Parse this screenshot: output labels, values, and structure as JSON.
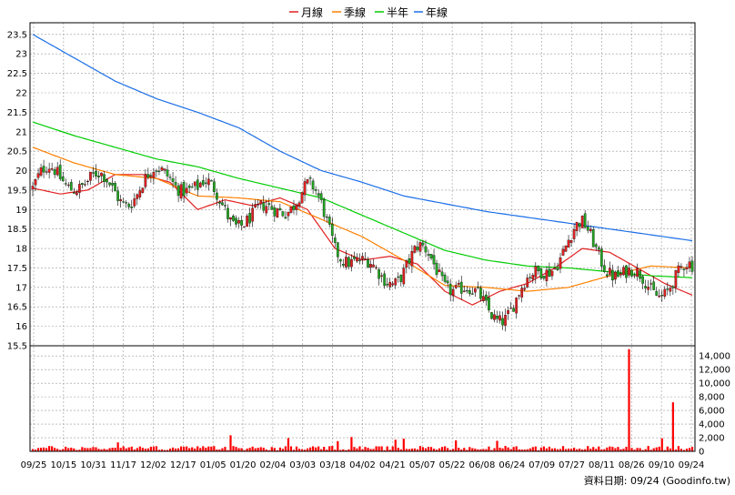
{
  "legend": {
    "items": [
      {
        "label": "月線",
        "color": "#e02020"
      },
      {
        "label": "季線",
        "color": "#ff8000"
      },
      {
        "label": "半年",
        "color": "#00cc00"
      },
      {
        "label": "年線",
        "color": "#1a6ee8"
      }
    ]
  },
  "source_text": "資料日期: 09/24 (Goodinfo.tw)",
  "colors": {
    "up_candle": "#e02020",
    "down_candle": "#22a522",
    "volume_bar": "#ff0000",
    "grid": "#999999"
  },
  "chart_data": [
    {
      "type": "candlestick",
      "title": "",
      "x_tick_labels": [
        "09/25",
        "10/15",
        "10/31",
        "11/17",
        "12/02",
        "12/17",
        "01/05",
        "01/20",
        "02/04",
        "03/03",
        "03/18",
        "04/02",
        "04/21",
        "05/07",
        "05/22",
        "06/08",
        "06/24",
        "07/09",
        "07/27",
        "08/11",
        "08/26",
        "09/10",
        "09/24"
      ],
      "y_tick_labels": [
        "15.5",
        "16",
        "16.5",
        "17",
        "17.5",
        "18",
        "18.5",
        "19",
        "19.5",
        "20",
        "20.5",
        "21",
        "21.5",
        "22",
        "22.5",
        "23",
        "23.5"
      ],
      "ylim": [
        15.5,
        23.8
      ],
      "grid": true,
      "series": [
        {
          "name": "月線",
          "x": [
            0,
            10,
            20,
            30,
            40,
            50,
            60,
            70,
            80,
            90,
            100,
            110,
            120,
            130,
            140,
            150,
            160,
            170,
            180,
            190,
            200,
            210,
            220,
            230,
            240
          ],
          "values": [
            19.55,
            19.4,
            19.5,
            19.9,
            19.9,
            19.7,
            19.0,
            19.25,
            19.1,
            19.3,
            19.0,
            18.0,
            17.7,
            17.8,
            17.6,
            16.9,
            16.55,
            16.9,
            17.1,
            17.5,
            18.0,
            17.9,
            17.5,
            17.1,
            16.8
          ]
        },
        {
          "name": "季線",
          "x": [
            0,
            15,
            30,
            45,
            60,
            75,
            90,
            105,
            120,
            135,
            150,
            165,
            180,
            195,
            210,
            225,
            240
          ],
          "values": [
            20.6,
            20.2,
            19.9,
            19.8,
            19.35,
            19.3,
            19.2,
            18.75,
            18.3,
            17.7,
            17.05,
            17.0,
            16.9,
            17.0,
            17.3,
            17.55,
            17.5
          ]
        },
        {
          "name": "半年",
          "x": [
            0,
            15,
            30,
            45,
            60,
            75,
            90,
            105,
            120,
            135,
            150,
            165,
            180,
            195,
            210,
            225,
            240
          ],
          "values": [
            21.25,
            20.9,
            20.6,
            20.3,
            20.1,
            19.8,
            19.55,
            19.3,
            18.85,
            18.4,
            17.95,
            17.7,
            17.55,
            17.5,
            17.4,
            17.3,
            17.25
          ]
        },
        {
          "name": "年線",
          "x": [
            0,
            15,
            30,
            45,
            60,
            75,
            90,
            105,
            120,
            135,
            150,
            165,
            180,
            195,
            210,
            225,
            240
          ],
          "values": [
            23.5,
            22.9,
            22.3,
            21.85,
            21.5,
            21.1,
            20.5,
            20.0,
            19.7,
            19.35,
            19.15,
            18.95,
            18.8,
            18.65,
            18.5,
            18.35,
            18.2
          ]
        }
      ]
    },
    {
      "type": "bar",
      "title": "",
      "series_name": "volume",
      "y_tick_labels": [
        "0",
        "2,000",
        "4,000",
        "6,000",
        "8,000",
        "10,000",
        "12,000",
        "14,000"
      ],
      "ylim": [
        0,
        15500
      ],
      "spikes": [
        {
          "x": 217,
          "value": 15000
        },
        {
          "x": 233,
          "value": 7200
        }
      ]
    }
  ]
}
